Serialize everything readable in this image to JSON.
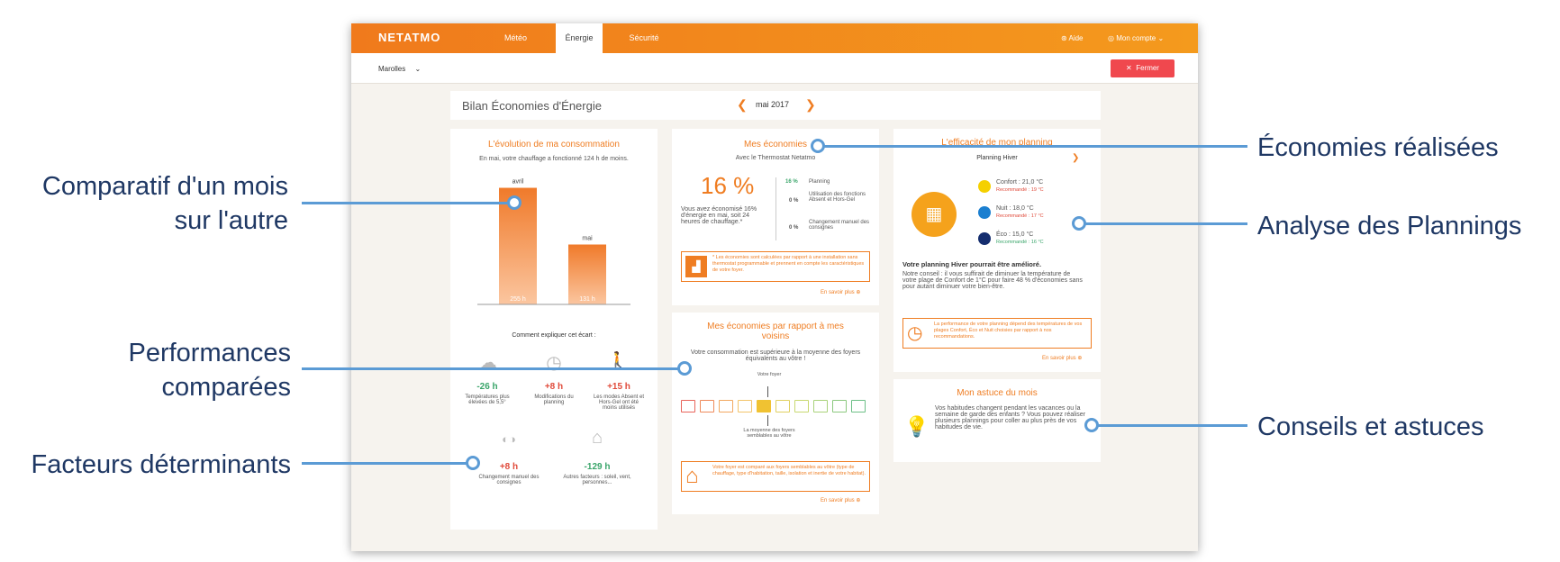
{
  "app": {
    "brand": "NETATMO",
    "tabs": [
      "Météo",
      "Énergie",
      "Sécurité"
    ],
    "help": "Aide",
    "account": "Mon compte",
    "location": "Marolles",
    "close_label": "Fermer"
  },
  "header": {
    "title": "Bilan Économies d'Énergie",
    "period": "mai 2017"
  },
  "consumption": {
    "title": "L'évolution de ma consommation",
    "subtitle": "En mai, votre chauffage a fonctionné 124 h de moins.",
    "explain": "Comment expliquer cet écart :"
  },
  "chart_data": {
    "type": "bar",
    "categories": [
      "avril",
      "mai"
    ],
    "values": [
      255,
      131
    ],
    "value_labels": [
      "255 h",
      "131 h"
    ],
    "ylim": [
      0,
      260
    ]
  },
  "factors": [
    {
      "value": "-26 h",
      "label": "Températures plus élevées de 5,5°",
      "color": "#3aa56a"
    },
    {
      "value": "+8 h",
      "label": "Modifications du planning",
      "color": "#e04a3a"
    },
    {
      "value": "+15 h",
      "label": "Les modes Absent et Hors-Gel ont été moins utilisés",
      "color": "#e04a3a"
    },
    {
      "value": "+8 h",
      "label": "Changement manuel des consignes",
      "color": "#e04a3a"
    },
    {
      "value": "-129 h",
      "label": "Autres facteurs : soleil, vent, personnes...",
      "color": "#3aa56a"
    }
  ],
  "savings": {
    "title": "Mes économies",
    "subtitle": "Avec le Thermostat Netatmo",
    "percent": "16 %",
    "desc": "Vous avez économisé 16% d'énergie en mai, soit 24 heures de chauffage.*",
    "rows": [
      {
        "pct": "16 %",
        "label": "Planning"
      },
      {
        "pct": "0 %",
        "label": "Utilisation des fonctions Absent et Hors-Gel"
      },
      {
        "pct": "0 %",
        "label": "Changement manuel des consignes"
      }
    ],
    "note": "* Les économies sont calculées par rapport à une installation sans thermostat programmable et prennent en compte les caractéristiques de votre foyer.",
    "more": "En savoir plus"
  },
  "neighbors": {
    "title": "Mes économies par rapport à mes voisins",
    "desc": "Votre consommation est supérieure à la moyenne des foyers équivalents au vôtre !",
    "your_home": "Votre foyer",
    "average": "La moyenne des foyers semblables au vôtre",
    "note": "Votre foyer est comparé aux foyers semblables au vôtre (type de chauffage, type d'habitation, taille, isolation et inertie de votre habitat).",
    "more": "En savoir plus"
  },
  "planning": {
    "title": "L'efficacité de mon planning",
    "name": "Planning Hiver",
    "modes": [
      {
        "label": "Confort : 21,0 °C",
        "rec": "Recommandé : 19 °C",
        "color": "#f5d000",
        "rec_color": "#e04a3a"
      },
      {
        "label": "Nuit : 18,0 °C",
        "rec": "Recommandé : 17 °C",
        "color": "#1b7fd0",
        "rec_color": "#e04a3a"
      },
      {
        "label": "Éco : 15,0 °C",
        "rec": "Recommandé : 16 °C",
        "color": "#142d6e",
        "rec_color": "#3aa56a"
      }
    ],
    "heading": "Votre planning Hiver pourrait être amélioré.",
    "advice": "Notre conseil : il vous suffirait de diminuer la température de votre plage de Confort de 1°C pour faire 48 % d'économies sans pour autant diminuer votre bien-être.",
    "note": "La performance de votre planning dépend des températures de vos plages Confort, Éco et Nuit choisies par rapport à nos recommandations.",
    "more": "En savoir plus"
  },
  "tip": {
    "title": "Mon astuce du mois",
    "text": "Vos habitudes changent pendant les vacances ou la semaine de garde des enfants ? Vous pouvez réaliser plusieurs plannings pour coller au plus près de vos habitudes de vie."
  },
  "callouts": {
    "comparatif": [
      "Comparatif d'un mois",
      "sur l'autre"
    ],
    "performances": [
      "Performances",
      "comparées"
    ],
    "facteurs": "Facteurs déterminants",
    "economies": "Économies réalisées",
    "analyse": "Analyse des Plannings",
    "conseils": "Conseils et astuces"
  },
  "colors": {
    "accent": "#ef7d22",
    "callout_text": "#1f3864",
    "callout_line": "#5b9bd5"
  }
}
